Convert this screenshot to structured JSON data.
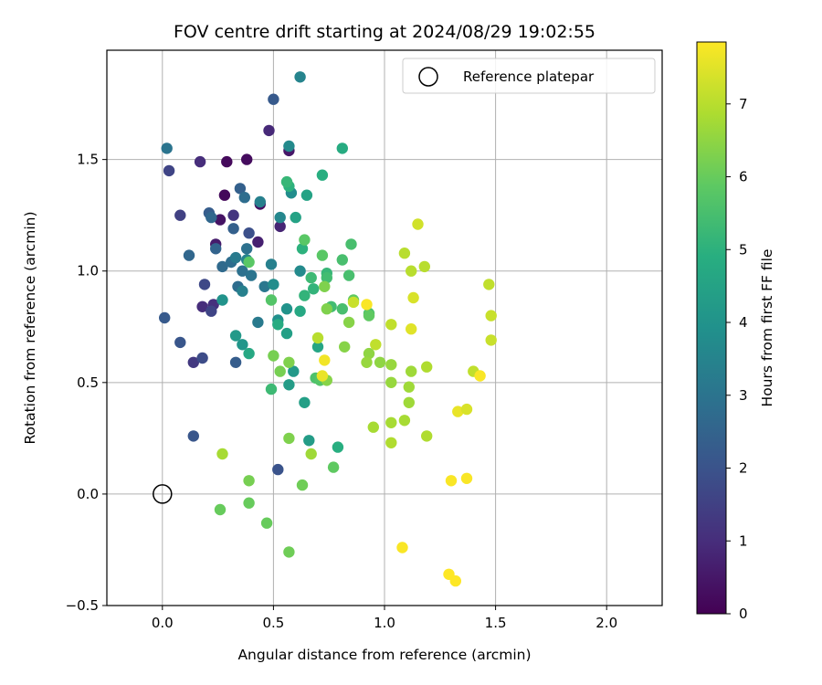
{
  "chart_data": {
    "type": "scatter",
    "title": "FOV centre drift starting at 2024/08/29 19:02:55",
    "xlabel": "Angular distance from reference (arcmin)",
    "ylabel": "Rotation from reference (arcmin)",
    "xlim": [
      -0.25,
      2.25
    ],
    "ylim": [
      -0.5,
      1.99
    ],
    "xticks": [
      "0.0",
      "0.5",
      "1.0",
      "1.5",
      "2.0"
    ],
    "xtick_values": [
      0,
      0.5,
      1.0,
      1.5,
      2.0
    ],
    "yticks": [
      "−0.5",
      "0.0",
      "0.5",
      "1.0",
      "1.5"
    ],
    "ytick_values": [
      -0.5,
      0,
      0.5,
      1.0,
      1.5
    ],
    "grid": true,
    "colormap": "viridis",
    "colorbar": {
      "label": "Hours from first FF file",
      "range": [
        0,
        7.85
      ],
      "ticks": [
        "0",
        "1",
        "2",
        "3",
        "4",
        "5",
        "6",
        "7"
      ],
      "tick_values": [
        0,
        1,
        2,
        3,
        4,
        5,
        6,
        7
      ]
    },
    "legend": {
      "label": "Reference platepar",
      "position": "top-right"
    },
    "reference_point": {
      "x": 0,
      "y": 0
    },
    "points": [
      {
        "x": 0.28,
        "y": 1.34,
        "c": 0.15
      },
      {
        "x": 0.29,
        "y": 1.49,
        "c": 0.2
      },
      {
        "x": 0.38,
        "y": 1.5,
        "c": 0.25
      },
      {
        "x": 0.44,
        "y": 1.3,
        "c": 0.3
      },
      {
        "x": 0.57,
        "y": 1.54,
        "c": 0.5
      },
      {
        "x": 0.26,
        "y": 1.23,
        "c": 0.4
      },
      {
        "x": 0.24,
        "y": 1.12,
        "c": 0.6
      },
      {
        "x": 0.43,
        "y": 1.13,
        "c": 0.7
      },
      {
        "x": 0.53,
        "y": 1.2,
        "c": 0.8
      },
      {
        "x": 0.48,
        "y": 1.63,
        "c": 0.9
      },
      {
        "x": 0.17,
        "y": 1.49,
        "c": 1.0
      },
      {
        "x": 0.18,
        "y": 0.84,
        "c": 1.0
      },
      {
        "x": 0.23,
        "y": 0.85,
        "c": 1.1
      },
      {
        "x": 0.14,
        "y": 0.59,
        "c": 1.3
      },
      {
        "x": 0.32,
        "y": 1.25,
        "c": 1.2
      },
      {
        "x": 0.08,
        "y": 1.25,
        "c": 1.5
      },
      {
        "x": 0.22,
        "y": 0.82,
        "c": 1.6
      },
      {
        "x": 0.19,
        "y": 0.94,
        "c": 1.7
      },
      {
        "x": 0.18,
        "y": 0.61,
        "c": 1.8
      },
      {
        "x": 0.03,
        "y": 1.45,
        "c": 1.6
      },
      {
        "x": 0.39,
        "y": 1.17,
        "c": 1.9
      },
      {
        "x": 0.52,
        "y": 0.11,
        "c": 2.0
      },
      {
        "x": 0.14,
        "y": 0.26,
        "c": 2.1
      },
      {
        "x": 0.08,
        "y": 0.68,
        "c": 2.1
      },
      {
        "x": 0.01,
        "y": 0.79,
        "c": 2.2
      },
      {
        "x": 0.5,
        "y": 1.77,
        "c": 2.2
      },
      {
        "x": 0.33,
        "y": 0.59,
        "c": 2.3
      },
      {
        "x": 0.21,
        "y": 1.26,
        "c": 2.3
      },
      {
        "x": 0.32,
        "y": 1.19,
        "c": 2.4
      },
      {
        "x": 0.24,
        "y": 1.1,
        "c": 2.5
      },
      {
        "x": 0.35,
        "y": 1.37,
        "c": 2.4
      },
      {
        "x": 0.22,
        "y": 1.24,
        "c": 2.6
      },
      {
        "x": 0.37,
        "y": 1.33,
        "c": 2.8
      },
      {
        "x": 0.12,
        "y": 1.07,
        "c": 2.6
      },
      {
        "x": 0.27,
        "y": 1.02,
        "c": 2.7
      },
      {
        "x": 0.31,
        "y": 1.04,
        "c": 2.8
      },
      {
        "x": 0.34,
        "y": 0.93,
        "c": 2.8
      },
      {
        "x": 0.36,
        "y": 1.0,
        "c": 2.9
      },
      {
        "x": 0.38,
        "y": 1.1,
        "c": 2.9
      },
      {
        "x": 0.4,
        "y": 0.98,
        "c": 3.0
      },
      {
        "x": 0.46,
        "y": 0.93,
        "c": 3.1
      },
      {
        "x": 0.43,
        "y": 0.77,
        "c": 3.2
      },
      {
        "x": 0.02,
        "y": 1.55,
        "c": 3.0
      },
      {
        "x": 0.33,
        "y": 1.06,
        "c": 3.2
      },
      {
        "x": 0.44,
        "y": 1.31,
        "c": 3.4
      },
      {
        "x": 0.49,
        "y": 1.03,
        "c": 3.4
      },
      {
        "x": 0.36,
        "y": 0.91,
        "c": 3.4
      },
      {
        "x": 0.38,
        "y": 1.05,
        "c": 3.5
      },
      {
        "x": 0.62,
        "y": 1.87,
        "c": 3.5
      },
      {
        "x": 0.53,
        "y": 1.24,
        "c": 3.6
      },
      {
        "x": 0.57,
        "y": 1.56,
        "c": 3.7
      },
      {
        "x": 0.62,
        "y": 1.0,
        "c": 3.7
      },
      {
        "x": 0.58,
        "y": 1.35,
        "c": 3.8
      },
      {
        "x": 0.5,
        "y": 0.94,
        "c": 3.8
      },
      {
        "x": 0.52,
        "y": 0.78,
        "c": 3.9
      },
      {
        "x": 0.56,
        "y": 0.83,
        "c": 4.0
      },
      {
        "x": 0.27,
        "y": 0.87,
        "c": 4.0
      },
      {
        "x": 0.36,
        "y": 0.67,
        "c": 4.1
      },
      {
        "x": 0.33,
        "y": 0.71,
        "c": 4.2
      },
      {
        "x": 0.59,
        "y": 0.55,
        "c": 4.2
      },
      {
        "x": 0.57,
        "y": 0.49,
        "c": 4.3
      },
      {
        "x": 0.66,
        "y": 0.24,
        "c": 4.3
      },
      {
        "x": 0.64,
        "y": 0.41,
        "c": 4.4
      },
      {
        "x": 0.56,
        "y": 0.72,
        "c": 4.4
      },
      {
        "x": 0.6,
        "y": 1.24,
        "c": 4.5
      },
      {
        "x": 0.65,
        "y": 1.34,
        "c": 4.5
      },
      {
        "x": 0.7,
        "y": 0.66,
        "c": 4.6
      },
      {
        "x": 0.39,
        "y": 0.63,
        "c": 4.7
      },
      {
        "x": 0.62,
        "y": 0.82,
        "c": 4.7
      },
      {
        "x": 0.52,
        "y": 0.76,
        "c": 4.8
      },
      {
        "x": 0.81,
        "y": 1.55,
        "c": 4.8
      },
      {
        "x": 0.72,
        "y": 1.43,
        "c": 4.9
      },
      {
        "x": 0.79,
        "y": 0.21,
        "c": 4.9
      },
      {
        "x": 0.57,
        "y": 1.38,
        "c": 5.0
      },
      {
        "x": 0.63,
        "y": 1.1,
        "c": 5.0
      },
      {
        "x": 0.64,
        "y": 0.89,
        "c": 5.1
      },
      {
        "x": 0.68,
        "y": 0.92,
        "c": 5.1
      },
      {
        "x": 0.74,
        "y": 0.99,
        "c": 5.2
      },
      {
        "x": 0.56,
        "y": 1.4,
        "c": 5.2
      },
      {
        "x": 0.67,
        "y": 0.97,
        "c": 5.3
      },
      {
        "x": 0.49,
        "y": 0.47,
        "c": 5.3
      },
      {
        "x": 0.74,
        "y": 0.97,
        "c": 5.4
      },
      {
        "x": 0.76,
        "y": 0.84,
        "c": 5.4
      },
      {
        "x": 0.81,
        "y": 0.83,
        "c": 5.5
      },
      {
        "x": 0.81,
        "y": 1.05,
        "c": 5.5
      },
      {
        "x": 0.85,
        "y": 1.12,
        "c": 5.5
      },
      {
        "x": 0.84,
        "y": 0.98,
        "c": 5.5
      },
      {
        "x": 0.93,
        "y": 0.81,
        "c": 5.6
      },
      {
        "x": 0.69,
        "y": 0.52,
        "c": 5.6
      },
      {
        "x": 0.71,
        "y": 0.51,
        "c": 5.7
      },
      {
        "x": 0.49,
        "y": 0.87,
        "c": 5.7
      },
      {
        "x": 0.72,
        "y": 1.07,
        "c": 5.8
      },
      {
        "x": 0.39,
        "y": 1.04,
        "c": 5.8
      },
      {
        "x": 0.64,
        "y": 1.14,
        "c": 5.8
      },
      {
        "x": 0.86,
        "y": 0.87,
        "c": 5.9
      },
      {
        "x": 0.93,
        "y": 0.8,
        "c": 5.9
      },
      {
        "x": 0.77,
        "y": 0.12,
        "c": 5.9
      },
      {
        "x": 0.26,
        "y": -0.07,
        "c": 6.0
      },
      {
        "x": 0.39,
        "y": -0.04,
        "c": 6.0
      },
      {
        "x": 0.47,
        "y": -0.13,
        "c": 6.0
      },
      {
        "x": 0.57,
        "y": -0.26,
        "c": 6.1
      },
      {
        "x": 0.63,
        "y": 0.04,
        "c": 6.1
      },
      {
        "x": 0.39,
        "y": 0.06,
        "c": 6.2
      },
      {
        "x": 0.5,
        "y": 0.62,
        "c": 6.2
      },
      {
        "x": 0.53,
        "y": 0.55,
        "c": 6.2
      },
      {
        "x": 0.57,
        "y": 0.59,
        "c": 6.3
      },
      {
        "x": 0.57,
        "y": 0.25,
        "c": 6.3
      },
      {
        "x": 0.74,
        "y": 0.83,
        "c": 6.3
      },
      {
        "x": 0.73,
        "y": 0.93,
        "c": 6.3
      },
      {
        "x": 0.74,
        "y": 0.51,
        "c": 6.4
      },
      {
        "x": 0.84,
        "y": 0.77,
        "c": 6.4
      },
      {
        "x": 0.82,
        "y": 0.66,
        "c": 6.4
      },
      {
        "x": 0.93,
        "y": 0.63,
        "c": 6.5
      },
      {
        "x": 0.98,
        "y": 0.59,
        "c": 6.5
      },
      {
        "x": 0.92,
        "y": 0.59,
        "c": 6.6
      },
      {
        "x": 1.03,
        "y": 0.58,
        "c": 6.6
      },
      {
        "x": 1.03,
        "y": 0.5,
        "c": 6.6
      },
      {
        "x": 1.12,
        "y": 0.55,
        "c": 6.7
      },
      {
        "x": 1.11,
        "y": 0.48,
        "c": 6.7
      },
      {
        "x": 1.11,
        "y": 0.41,
        "c": 6.7
      },
      {
        "x": 1.09,
        "y": 0.33,
        "c": 6.8
      },
      {
        "x": 1.03,
        "y": 0.32,
        "c": 6.8
      },
      {
        "x": 0.95,
        "y": 0.3,
        "c": 6.8
      },
      {
        "x": 1.03,
        "y": 0.23,
        "c": 6.9
      },
      {
        "x": 1.19,
        "y": 0.26,
        "c": 6.9
      },
      {
        "x": 1.19,
        "y": 0.57,
        "c": 6.9
      },
      {
        "x": 1.12,
        "y": 1.0,
        "c": 7.0
      },
      {
        "x": 1.18,
        "y": 1.02,
        "c": 7.0
      },
      {
        "x": 1.09,
        "y": 1.08,
        "c": 7.0
      },
      {
        "x": 1.03,
        "y": 0.76,
        "c": 7.1
      },
      {
        "x": 0.96,
        "y": 0.67,
        "c": 7.1
      },
      {
        "x": 0.86,
        "y": 0.86,
        "c": 7.2
      },
      {
        "x": 0.67,
        "y": 0.18,
        "c": 6.7
      },
      {
        "x": 0.27,
        "y": 0.18,
        "c": 6.8
      },
      {
        "x": 0.7,
        "y": 0.7,
        "c": 7.0
      },
      {
        "x": 1.4,
        "y": 0.55,
        "c": 7.1
      },
      {
        "x": 1.47,
        "y": 0.94,
        "c": 7.1
      },
      {
        "x": 1.48,
        "y": 0.8,
        "c": 7.2
      },
      {
        "x": 1.48,
        "y": 0.69,
        "c": 7.2
      },
      {
        "x": 1.13,
        "y": 0.88,
        "c": 7.4
      },
      {
        "x": 1.15,
        "y": 1.21,
        "c": 7.3
      },
      {
        "x": 1.12,
        "y": 0.74,
        "c": 7.5
      },
      {
        "x": 1.33,
        "y": 0.37,
        "c": 7.6
      },
      {
        "x": 1.37,
        "y": 0.38,
        "c": 7.4
      },
      {
        "x": 0.72,
        "y": 0.53,
        "c": 7.6
      },
      {
        "x": 0.73,
        "y": 0.6,
        "c": 7.7
      },
      {
        "x": 0.92,
        "y": 0.85,
        "c": 7.8
      },
      {
        "x": 1.43,
        "y": 0.53,
        "c": 7.8
      },
      {
        "x": 1.3,
        "y": 0.06,
        "c": 7.8
      },
      {
        "x": 1.37,
        "y": 0.07,
        "c": 7.8
      },
      {
        "x": 1.08,
        "y": -0.24,
        "c": 7.8
      },
      {
        "x": 1.29,
        "y": -0.36,
        "c": 7.85
      },
      {
        "x": 1.32,
        "y": -0.39,
        "c": 7.85
      }
    ]
  }
}
